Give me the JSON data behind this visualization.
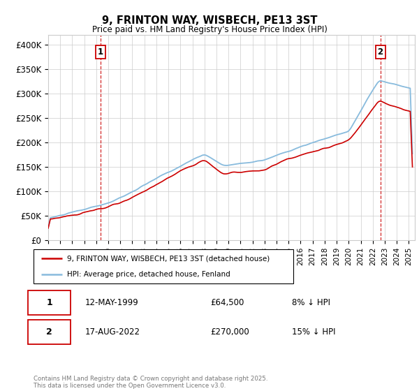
{
  "title": "9, FRINTON WAY, WISBECH, PE13 3ST",
  "subtitle": "Price paid vs. HM Land Registry's House Price Index (HPI)",
  "ylabel_ticks": [
    "£0",
    "£50K",
    "£100K",
    "£150K",
    "£200K",
    "£250K",
    "£300K",
    "£350K",
    "£400K"
  ],
  "ytick_values": [
    0,
    50000,
    100000,
    150000,
    200000,
    250000,
    300000,
    350000,
    400000
  ],
  "ylim": [
    0,
    420000
  ],
  "xlim_start": 1995.0,
  "xlim_end": 2025.5,
  "legend_line1": "9, FRINTON WAY, WISBECH, PE13 3ST (detached house)",
  "legend_line2": "HPI: Average price, detached house, Fenland",
  "marker1_date": "12-MAY-1999",
  "marker1_price": "£64,500",
  "marker1_hpi": "8% ↓ HPI",
  "marker1_x": 1999.36,
  "marker1_y": 64500,
  "marker2_date": "17-AUG-2022",
  "marker2_price": "£270,000",
  "marker2_hpi": "15% ↓ HPI",
  "marker2_x": 2022.63,
  "marker2_y": 270000,
  "copyright": "Contains HM Land Registry data © Crown copyright and database right 2025.\nThis data is licensed under the Open Government Licence v3.0.",
  "line_color_red": "#cc0000",
  "line_color_blue": "#88bbdd",
  "vline_color": "#cc0000",
  "background_color": "#ffffff",
  "grid_color": "#cccccc"
}
